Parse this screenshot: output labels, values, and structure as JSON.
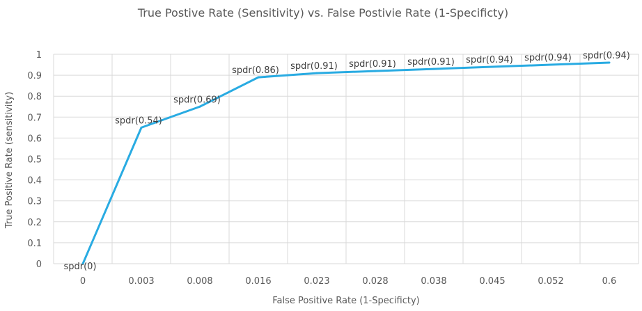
{
  "chart_data": {
    "type": "line",
    "title": "True Postive Rate (Sensitivity) vs. False Postivie Rate (1-Specificty)",
    "xlabel": "False Positive Rate (1-Specificty)",
    "ylabel": "True Positive Rate (sensitivity)",
    "categories": [
      "0",
      "0.003",
      "0.008",
      "0.016",
      "0.023",
      "0.028",
      "0.038",
      "0.045",
      "0.052",
      "0.6"
    ],
    "series": [
      {
        "values": [
          0,
          0.65,
          0.75,
          0.89,
          0.91,
          0.92,
          0.93,
          0.94,
          0.95,
          0.96
        ],
        "data_labels": [
          "spdr(0)",
          "spdr(0.54)",
          "spdr(0.69)",
          "spdr(0.86)",
          "spdr(0.91)",
          "spdr(0.91)",
          "spdr(0.91)",
          "spdr(0.94)",
          "spdr(0.94)",
          "spdr(0.94)"
        ],
        "color": "#29abe2"
      }
    ],
    "ylim": [
      0,
      1
    ],
    "yticks": [
      "0",
      "0.1",
      "0.2",
      "0.3",
      "0.4",
      "0.5",
      "0.6",
      "0.7",
      "0.8",
      "0.9",
      "1"
    ],
    "grid": true,
    "legend": "none"
  }
}
